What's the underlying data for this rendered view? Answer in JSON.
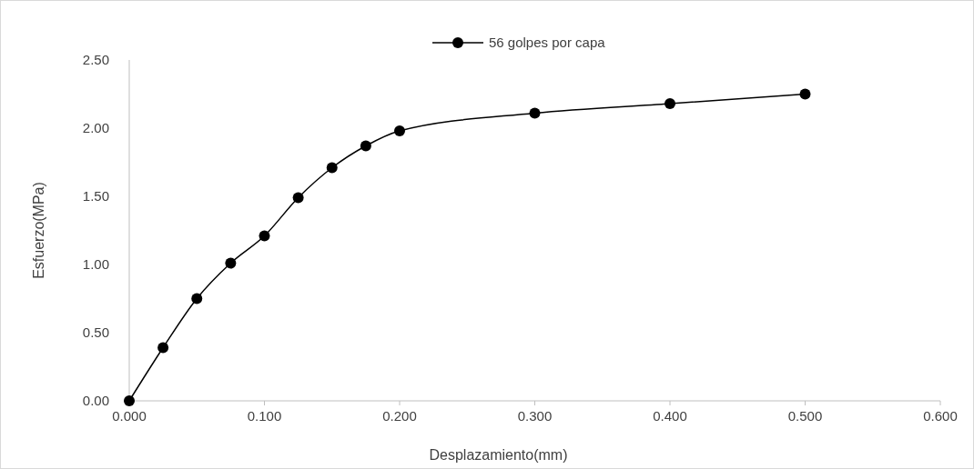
{
  "chart_data": {
    "type": "line",
    "xlabel": "Desplazamiento(mm)",
    "ylabel": "Esfuerzo(MPa)",
    "x": [
      0,
      0.025,
      0.05,
      0.075,
      0.1,
      0.125,
      0.15,
      0.175,
      0.2,
      0.3,
      0.4,
      0.5
    ],
    "series": [
      {
        "name": "56 golpes por capa",
        "color": "#000000",
        "values": [
          0,
          0.39,
          0.75,
          1.01,
          1.21,
          1.49,
          1.71,
          1.87,
          1.98,
          2.11,
          2.18,
          2.25
        ]
      }
    ],
    "xlim": [
      0,
      0.6
    ],
    "xticks": [
      {
        "value": 0,
        "label": "0.000"
      },
      {
        "value": 0.1,
        "label": "0.100"
      },
      {
        "value": 0.2,
        "label": "0.200"
      },
      {
        "value": 0.3,
        "label": "0.300"
      },
      {
        "value": 0.4,
        "label": "0.400"
      },
      {
        "value": 0.5,
        "label": "0.500"
      },
      {
        "value": 0.6,
        "label": "0.600"
      }
    ],
    "ylim": [
      0,
      2.5
    ],
    "yticks": [
      {
        "value": 0,
        "label": "0.00"
      },
      {
        "value": 0.5,
        "label": "0.50"
      },
      {
        "value": 1,
        "label": "1.00"
      },
      {
        "value": 1.5,
        "label": "1.50"
      },
      {
        "value": 2,
        "label": "2.00"
      },
      {
        "value": 2.5,
        "label": "2.50"
      }
    ],
    "grid": false,
    "legend": "top",
    "marker": "circle",
    "line_style": "solid"
  }
}
